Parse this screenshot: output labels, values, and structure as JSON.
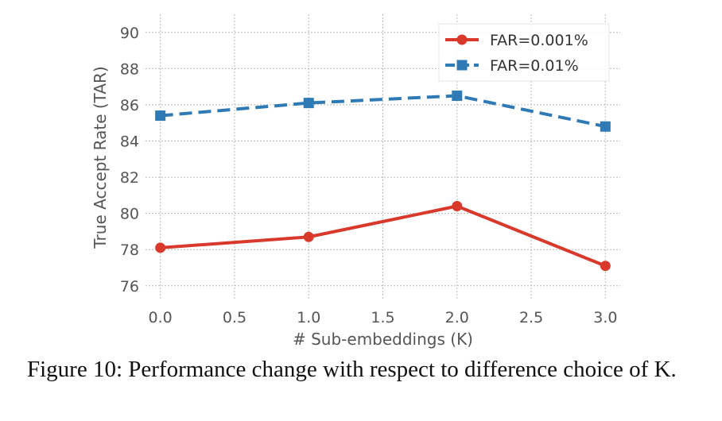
{
  "chart_data": {
    "type": "line",
    "title": "",
    "xlabel": "# Sub-embeddings (K)",
    "ylabel": "True Accept Rate (TAR)",
    "xlim": [
      -0.1,
      3.1
    ],
    "ylim": [
      75.2,
      91.0
    ],
    "xticks": [
      0.0,
      0.5,
      1.0,
      1.5,
      2.0,
      2.5,
      3.0
    ],
    "xtick_labels": [
      "0.0",
      "0.5",
      "1.0",
      "1.5",
      "2.0",
      "2.5",
      "3.0"
    ],
    "yticks": [
      76,
      78,
      80,
      82,
      84,
      86,
      88,
      90
    ],
    "ytick_labels": [
      "76",
      "78",
      "80",
      "82",
      "84",
      "86",
      "88",
      "90"
    ],
    "grid": true,
    "legend_position": "top-right",
    "series": [
      {
        "name": "FAR=0.001%",
        "color": "#d8392b",
        "marker": "circle",
        "dashed": false,
        "x": [
          0,
          1,
          2,
          3
        ],
        "values": [
          78.1,
          78.7,
          80.4,
          77.1
        ]
      },
      {
        "name": "FAR=0.01%",
        "color": "#2e7ab6",
        "marker": "square",
        "dashed": true,
        "x": [
          0,
          1,
          2,
          3
        ],
        "values": [
          85.4,
          86.1,
          86.5,
          84.8
        ]
      }
    ]
  },
  "caption": {
    "text": "Figure 10: Performance change with respect to difference choice of K."
  }
}
